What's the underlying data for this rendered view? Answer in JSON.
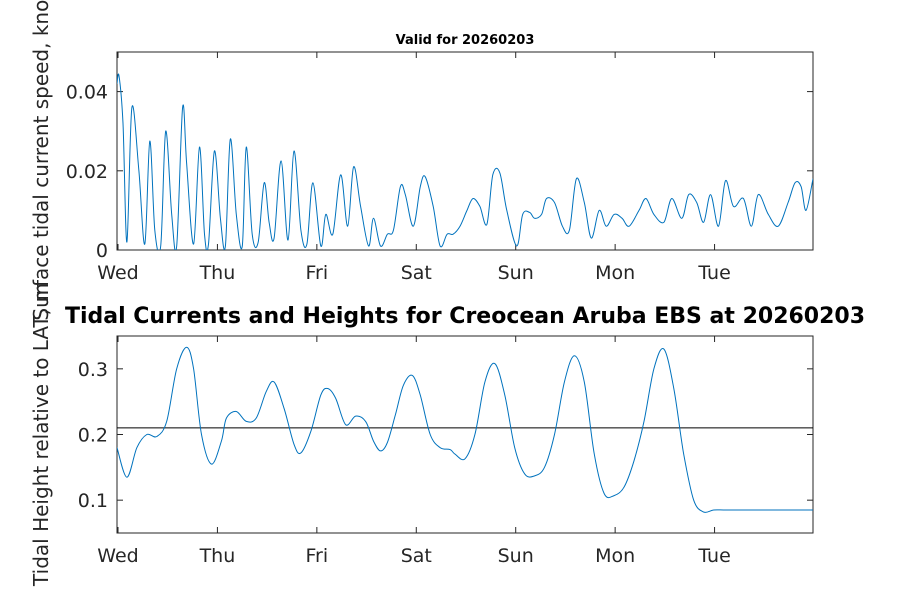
{
  "chart_data": [
    {
      "type": "line",
      "title": "Valid for 20260203",
      "xlabel": "",
      "ylabel": "Surface tidal current speed, knots",
      "xlim": [
        0,
        7
      ],
      "ylim": [
        0,
        0.05
      ],
      "x_tick_labels": [
        "Wed",
        "Thu",
        "Fri",
        "Sat",
        "Sun",
        "Mon",
        "Tue"
      ],
      "y_tick_labels": [
        "0",
        "0.02",
        "0.04"
      ],
      "y_ticks": [
        0,
        0.02,
        0.04
      ],
      "series": [
        {
          "name": "Surface tidal current speed",
          "color": "#0072BD",
          "x": [
            0,
            0.02,
            0.06,
            0.1,
            0.15,
            0.22,
            0.28,
            0.33,
            0.38,
            0.44,
            0.49,
            0.55,
            0.6,
            0.66,
            0.7,
            0.77,
            0.83,
            0.88,
            0.92,
            0.98,
            1.04,
            1.09,
            1.14,
            1.2,
            1.26,
            1.3,
            1.36,
            1.42,
            1.48,
            1.53,
            1.58,
            1.65,
            1.72,
            1.78,
            1.85,
            1.91,
            1.97,
            2.05,
            2.1,
            2.17,
            2.25,
            2.32,
            2.38,
            2.45,
            2.53,
            2.58,
            2.65,
            2.72,
            2.78,
            2.85,
            2.9,
            2.98,
            3.05,
            3.1,
            3.18,
            3.25,
            3.32,
            3.38,
            3.45,
            3.52,
            3.58,
            3.65,
            3.72,
            3.78,
            3.85,
            3.92,
            4.02,
            4.08,
            4.15,
            4.2,
            4.27,
            4.32,
            4.4,
            4.48,
            4.55,
            4.62,
            4.7,
            4.77,
            4.85,
            4.92,
            5.0,
            5.08,
            5.15,
            5.25,
            5.32,
            5.4,
            5.5,
            5.58,
            5.68,
            5.75,
            5.83,
            5.9,
            5.97,
            6.05,
            6.12,
            6.2,
            6.3,
            6.38,
            6.45,
            6.55,
            6.65,
            6.75,
            6.82,
            6.88,
            6.93,
            7.0
          ],
          "y": [
            0.042,
            0.044,
            0.032,
            0.002,
            0.036,
            0.02,
            0.0015,
            0.0275,
            0.005,
            0.001,
            0.03,
            0.009,
            0.001,
            0.036,
            0.022,
            0.0015,
            0.026,
            0.004,
            0.0015,
            0.025,
            0.008,
            0.001,
            0.028,
            0.009,
            0.001,
            0.026,
            0.004,
            0.002,
            0.017,
            0.007,
            0.003,
            0.0225,
            0.0025,
            0.025,
            0.005,
            0.0015,
            0.017,
            0.001,
            0.009,
            0.004,
            0.019,
            0.006,
            0.021,
            0.011,
            0.001,
            0.008,
            0.001,
            0.004,
            0.005,
            0.016,
            0.014,
            0.006,
            0.016,
            0.0185,
            0.011,
            0.001,
            0.004,
            0.004,
            0.006,
            0.01,
            0.013,
            0.011,
            0.0065,
            0.019,
            0.0195,
            0.01,
            0.001,
            0.009,
            0.0095,
            0.008,
            0.009,
            0.013,
            0.012,
            0.006,
            0.005,
            0.018,
            0.012,
            0.003,
            0.01,
            0.006,
            0.009,
            0.008,
            0.006,
            0.01,
            0.013,
            0.009,
            0.007,
            0.013,
            0.008,
            0.014,
            0.012,
            0.007,
            0.014,
            0.006,
            0.0175,
            0.011,
            0.013,
            0.006,
            0.014,
            0.009,
            0.006,
            0.012,
            0.017,
            0.016,
            0.01,
            0.018
          ]
        }
      ]
    },
    {
      "type": "line",
      "title": "Tidal Currents and Heights for Creocean Aruba EBS at 20260203",
      "xlabel": "",
      "ylabel": "Tidal Height relative to LAT, m",
      "xlim": [
        0,
        7
      ],
      "ylim": [
        0.05,
        0.35
      ],
      "x_tick_labels": [
        "Wed",
        "Thu",
        "Fri",
        "Sat",
        "Sun",
        "Mon",
        "Tue"
      ],
      "y_tick_labels": [
        "0.1",
        "0.2",
        "0.3"
      ],
      "y_ticks": [
        0.1,
        0.2,
        0.3
      ],
      "reference_line": 0.21,
      "series": [
        {
          "name": "Tidal height",
          "color": "#0072BD",
          "x": [
            0,
            0.1,
            0.2,
            0.3,
            0.4,
            0.5,
            0.6,
            0.7,
            0.77,
            0.85,
            0.95,
            1.05,
            1.1,
            1.2,
            1.3,
            1.4,
            1.5,
            1.58,
            1.68,
            1.78,
            1.85,
            1.95,
            2.05,
            2.12,
            2.2,
            2.3,
            2.4,
            2.5,
            2.58,
            2.65,
            2.72,
            2.8,
            2.88,
            2.97,
            3.05,
            3.15,
            3.25,
            3.35,
            3.4,
            3.5,
            3.6,
            3.7,
            3.8,
            3.9,
            4.0,
            4.1,
            4.2,
            4.3,
            4.4,
            4.5,
            4.6,
            4.7,
            4.8,
            4.9,
            5.0,
            5.1,
            5.2,
            5.3,
            5.4,
            5.5,
            5.6,
            5.7,
            5.8,
            5.9,
            6.0,
            6.1,
            6.2,
            6.3,
            6.4,
            6.5,
            6.6,
            6.7,
            6.8,
            6.9,
            6.95,
            7.0
          ],
          "y": [
            0.18,
            0.135,
            0.18,
            0.2,
            0.197,
            0.22,
            0.3,
            0.333,
            0.3,
            0.2,
            0.155,
            0.19,
            0.225,
            0.235,
            0.22,
            0.225,
            0.265,
            0.28,
            0.24,
            0.185,
            0.172,
            0.205,
            0.26,
            0.27,
            0.255,
            0.215,
            0.228,
            0.22,
            0.19,
            0.175,
            0.188,
            0.23,
            0.275,
            0.29,
            0.26,
            0.2,
            0.18,
            0.177,
            0.17,
            0.163,
            0.2,
            0.28,
            0.308,
            0.26,
            0.18,
            0.14,
            0.137,
            0.15,
            0.2,
            0.28,
            0.32,
            0.28,
            0.17,
            0.11,
            0.107,
            0.12,
            0.16,
            0.22,
            0.3,
            0.33,
            0.27,
            0.17,
            0.1,
            0.082,
            0.085,
            0.085,
            0.085,
            0.085,
            0.085,
            0.085,
            0.085,
            0.085,
            0.085,
            0.085,
            0.085,
            0.085
          ]
        }
      ]
    }
  ]
}
